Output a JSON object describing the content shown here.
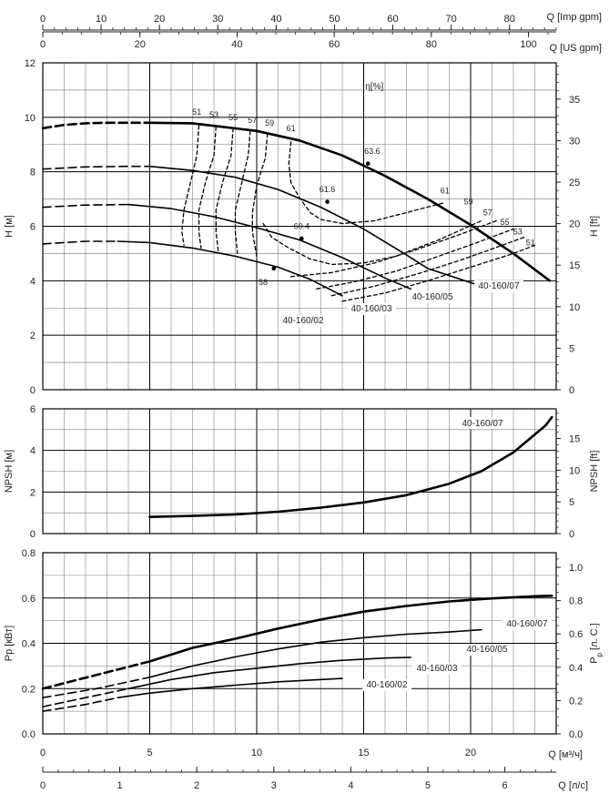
{
  "chart_data": [
    {
      "type": "axis",
      "label": "Q [Imp gpm]",
      "ticks": [
        0,
        10,
        20,
        30,
        40,
        50,
        60,
        70,
        80
      ],
      "range": [
        0,
        88.0
      ]
    },
    {
      "type": "axis",
      "label": "Q [US gpm]",
      "ticks": [
        0,
        20,
        40,
        60,
        80,
        100
      ],
      "range": [
        0,
        105.7
      ]
    },
    {
      "type": "line",
      "ylabel": "H [м]",
      "ylabel_right": "H [ft]",
      "eta_label": "η[%]",
      "xlim": [
        0,
        24
      ],
      "ylim": [
        0,
        12
      ],
      "yticks": [
        0,
        2,
        4,
        6,
        8,
        10,
        12
      ],
      "yticks_right": [
        0,
        5,
        10,
        15,
        20,
        25,
        30,
        35
      ],
      "series": [
        {
          "name": "40-160/07",
          "solid": [
            [
              5,
              9.8
            ],
            [
              7,
              9.78
            ],
            [
              10,
              9.5
            ],
            [
              12,
              9.15
            ],
            [
              14,
              8.6
            ],
            [
              16,
              7.85
            ],
            [
              18,
              7.0
            ],
            [
              20,
              6.05
            ],
            [
              22,
              5.0
            ],
            [
              23.7,
              4.0
            ]
          ],
          "dashed": [
            [
              0,
              9.6
            ],
            [
              1,
              9.72
            ],
            [
              2,
              9.78
            ],
            [
              3,
              9.8
            ],
            [
              5,
              9.8
            ]
          ],
          "point": [
            15.2,
            8.3
          ]
        },
        {
          "name": "40-160/05",
          "solid": [
            [
              5,
              8.2
            ],
            [
              7,
              8.05
            ],
            [
              9,
              7.8
            ],
            [
              11,
              7.35
            ],
            [
              13,
              6.7
            ],
            [
              15,
              5.9
            ],
            [
              17,
              4.95
            ],
            [
              18,
              4.45
            ],
            [
              20.5,
              3.8
            ]
          ],
          "dashed": [
            [
              0,
              8.1
            ],
            [
              2,
              8.18
            ],
            [
              4,
              8.2
            ],
            [
              5,
              8.2
            ]
          ],
          "point": [
            13.3,
            6.9
          ]
        },
        {
          "name": "40-160/03",
          "solid": [
            [
              4,
              6.8
            ],
            [
              6,
              6.65
            ],
            [
              8,
              6.35
            ],
            [
              10,
              5.95
            ],
            [
              12,
              5.5
            ],
            [
              14,
              4.85
            ],
            [
              16,
              4.1
            ],
            [
              17.2,
              3.7
            ]
          ],
          "dashed": [
            [
              0,
              6.7
            ],
            [
              2,
              6.78
            ],
            [
              4,
              6.8
            ]
          ],
          "point": [
            12.1,
            5.55
          ]
        },
        {
          "name": "40-160/02",
          "solid": [
            [
              3.5,
              5.45
            ],
            [
              5,
              5.4
            ],
            [
              7,
              5.2
            ],
            [
              9,
              4.9
            ],
            [
              11,
              4.5
            ],
            [
              12.5,
              4.05
            ],
            [
              14,
              3.45
            ]
          ],
          "dashed": [
            [
              0,
              5.35
            ],
            [
              2,
              5.45
            ],
            [
              3.5,
              5.45
            ]
          ],
          "point": [
            10.8,
            4.45
          ]
        }
      ],
      "efficiency_labels": [
        {
          "text": "51",
          "x": 7.2,
          "y": 10.2
        },
        {
          "text": "53",
          "x": 8.0,
          "y": 10.1
        },
        {
          "text": "55",
          "x": 8.9,
          "y": 10.0
        },
        {
          "text": "57",
          "x": 9.8,
          "y": 9.9
        },
        {
          "text": "59",
          "x": 10.6,
          "y": 9.8
        },
        {
          "text": "61",
          "x": 11.6,
          "y": 9.6
        },
        {
          "text": "63.6",
          "x": 15.4,
          "y": 8.75
        },
        {
          "text": "61.6",
          "x": 13.3,
          "y": 7.35
        },
        {
          "text": "60.4",
          "x": 12.1,
          "y": 6.0
        },
        {
          "text": "58",
          "x": 10.3,
          "y": 3.95
        },
        {
          "text": "61",
          "x": 18.8,
          "y": 7.3
        },
        {
          "text": "59",
          "x": 19.9,
          "y": 6.9
        },
        {
          "text": "57",
          "x": 20.8,
          "y": 6.5
        },
        {
          "text": "55",
          "x": 21.6,
          "y": 6.15
        },
        {
          "text": "53",
          "x": 22.2,
          "y": 5.8
        },
        {
          "text": "51",
          "x": 22.8,
          "y": 5.4
        }
      ],
      "efficiency_curves": [
        [
          [
            7.3,
            9.7
          ],
          [
            7.2,
            8.6
          ],
          [
            6.9,
            7.6
          ],
          [
            6.6,
            6.6
          ],
          [
            6.5,
            5.8
          ],
          [
            6.6,
            5.3
          ]
        ],
        [
          [
            8.1,
            9.65
          ],
          [
            8.0,
            8.6
          ],
          [
            7.6,
            7.6
          ],
          [
            7.3,
            6.6
          ],
          [
            7.3,
            5.8
          ],
          [
            7.4,
            5.2
          ]
        ],
        [
          [
            8.9,
            9.6
          ],
          [
            8.8,
            8.6
          ],
          [
            8.4,
            7.6
          ],
          [
            8.1,
            6.6
          ],
          [
            8.1,
            5.8
          ],
          [
            8.2,
            5.1
          ]
        ],
        [
          [
            9.7,
            9.5
          ],
          [
            9.6,
            8.6
          ],
          [
            9.3,
            7.6
          ],
          [
            9.0,
            6.6
          ],
          [
            9.0,
            5.8
          ],
          [
            9.1,
            5.0
          ]
        ],
        [
          [
            10.5,
            9.4
          ],
          [
            10.4,
            8.5
          ],
          [
            10.0,
            7.5
          ],
          [
            9.8,
            6.5
          ],
          [
            9.8,
            5.8
          ],
          [
            10.0,
            4.9
          ]
        ],
        [
          [
            11.6,
            9.1
          ],
          [
            11.5,
            8.3
          ],
          [
            11.6,
            7.6
          ],
          [
            12.0,
            7.05
          ],
          [
            12.5,
            6.5
          ],
          [
            13.0,
            6.25
          ],
          [
            14.0,
            6.1
          ],
          [
            15.5,
            6.2
          ],
          [
            17.0,
            6.5
          ],
          [
            18.7,
            6.85
          ]
        ],
        [
          [
            10.3,
            6.1
          ],
          [
            10.7,
            5.6
          ],
          [
            11.5,
            5.2
          ],
          [
            12.5,
            4.8
          ],
          [
            13.5,
            4.6
          ],
          [
            15.0,
            4.65
          ],
          [
            16.5,
            4.9
          ],
          [
            18.5,
            5.5
          ],
          [
            20.5,
            6.2
          ]
        ],
        [
          [
            11.6,
            4.15
          ],
          [
            13.5,
            4.3
          ],
          [
            15.5,
            4.65
          ],
          [
            17.5,
            5.15
          ],
          [
            19.5,
            5.7
          ],
          [
            21.2,
            6.2
          ]
        ],
        [
          [
            12.8,
            3.7
          ],
          [
            14.5,
            3.95
          ],
          [
            16.5,
            4.35
          ],
          [
            18.5,
            4.9
          ],
          [
            20.3,
            5.4
          ],
          [
            22.0,
            5.9
          ]
        ],
        [
          [
            13.5,
            3.45
          ],
          [
            15.5,
            3.8
          ],
          [
            17.5,
            4.25
          ],
          [
            19.5,
            4.75
          ],
          [
            21.3,
            5.25
          ],
          [
            22.5,
            5.6
          ]
        ],
        [
          [
            14.0,
            3.25
          ],
          [
            16.0,
            3.55
          ],
          [
            18.0,
            4.0
          ],
          [
            20.0,
            4.5
          ],
          [
            22.0,
            5.0
          ],
          [
            23.0,
            5.3
          ]
        ]
      ]
    },
    {
      "type": "line",
      "ylabel": "NPSH [м]",
      "ylabel_right": "NPSH [ft]",
      "xlim": [
        0,
        24
      ],
      "ylim": [
        0,
        6
      ],
      "yticks": [
        0,
        2,
        4,
        6
      ],
      "yticks_right": [
        0,
        5,
        10,
        15
      ],
      "series": [
        {
          "name": "40-160/07",
          "solid": [
            [
              5,
              0.8
            ],
            [
              7,
              0.85
            ],
            [
              9,
              0.92
            ],
            [
              11,
              1.05
            ],
            [
              13,
              1.25
            ],
            [
              15,
              1.5
            ],
            [
              17,
              1.85
            ],
            [
              19,
              2.4
            ],
            [
              20.5,
              3.0
            ],
            [
              22,
              3.9
            ],
            [
              23.5,
              5.2
            ],
            [
              23.8,
              5.6
            ]
          ],
          "dashed": []
        }
      ]
    },
    {
      "type": "line",
      "ylabel": "Pp [кВт]",
      "ylabel_right_main": "P",
      "ylabel_right_sub": "p",
      "ylabel_right_suffix": "[л. С.]",
      "xlabel": "Q [м³/ч]",
      "xlim": [
        0,
        24
      ],
      "ylim": [
        0,
        0.8
      ],
      "yticks": [
        "0.0",
        "0.2",
        "0.4",
        "0.6",
        "0.8"
      ],
      "yticks_right": [
        "0.0",
        "0.2",
        "0.4",
        "0.6",
        "0.8",
        "1.0"
      ],
      "xticks": [
        0,
        5,
        10,
        15,
        20
      ],
      "series": [
        {
          "name": "40-160/07",
          "solid": [
            [
              5,
              0.32
            ],
            [
              7,
              0.38
            ],
            [
              9,
              0.42
            ],
            [
              11,
              0.465
            ],
            [
              13,
              0.505
            ],
            [
              15,
              0.54
            ],
            [
              17,
              0.565
            ],
            [
              19,
              0.585
            ],
            [
              21,
              0.598
            ],
            [
              23,
              0.608
            ],
            [
              23.8,
              0.61
            ]
          ],
          "dashed": [
            [
              0,
              0.2
            ],
            [
              2.5,
              0.26
            ],
            [
              5,
              0.32
            ]
          ]
        },
        {
          "name": "40-160/05",
          "solid": [
            [
              5,
              0.25
            ],
            [
              7,
              0.3
            ],
            [
              9,
              0.34
            ],
            [
              11,
              0.375
            ],
            [
              13,
              0.405
            ],
            [
              15,
              0.425
            ],
            [
              17,
              0.44
            ],
            [
              19,
              0.45
            ],
            [
              20.5,
              0.46
            ]
          ],
          "dashed": [
            [
              0,
              0.16
            ],
            [
              2.5,
              0.2
            ],
            [
              5,
              0.25
            ]
          ]
        },
        {
          "name": "40-160/03",
          "solid": [
            [
              4,
              0.2
            ],
            [
              6,
              0.24
            ],
            [
              8,
              0.27
            ],
            [
              10,
              0.29
            ],
            [
              12,
              0.31
            ],
            [
              14,
              0.325
            ],
            [
              16,
              0.335
            ],
            [
              17.2,
              0.338
            ]
          ],
          "dashed": [
            [
              0,
              0.12
            ],
            [
              2,
              0.16
            ],
            [
              4,
              0.2
            ]
          ]
        },
        {
          "name": "40-160/02",
          "solid": [
            [
              3.5,
              0.16
            ],
            [
              5,
              0.18
            ],
            [
              7,
              0.2
            ],
            [
              9,
              0.215
            ],
            [
              11,
              0.23
            ],
            [
              13,
              0.24
            ],
            [
              14,
              0.245
            ]
          ],
          "dashed": [
            [
              0,
              0.1
            ],
            [
              2,
              0.13
            ],
            [
              3.5,
              0.16
            ]
          ]
        }
      ]
    },
    {
      "type": "axis",
      "label": "Q [л/с]",
      "ticks": [
        0,
        1,
        2,
        3,
        4,
        5,
        6
      ],
      "range": [
        0,
        6.667
      ]
    }
  ]
}
